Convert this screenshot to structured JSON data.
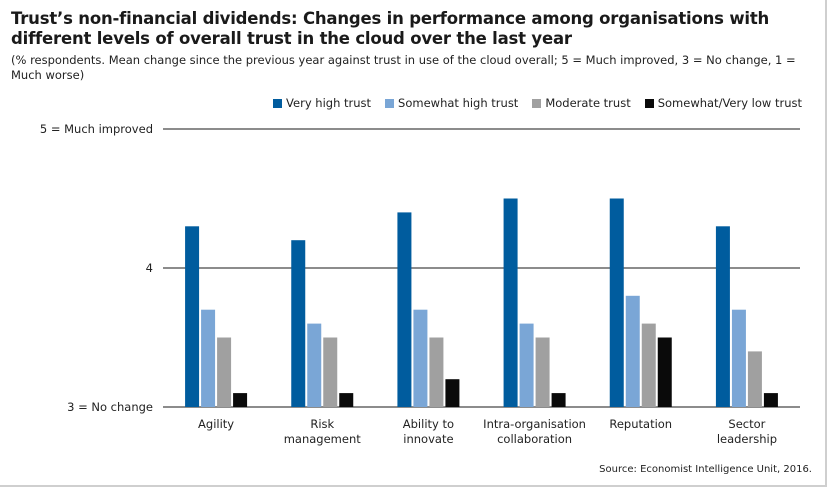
{
  "title": "Trust’s non-financial dividends: Changes in performance among organisations with different levels of overall trust in the cloud over the last year",
  "subtitle": "(% respondents. Mean change since the previous year against trust in use of the cloud overall; 5 = Much improved, 3 = No change, 1 = Much worse)",
  "source": "Source: Economist Intelligence Unit, 2016.",
  "chart_data": {
    "type": "bar",
    "title": "Trust’s non-financial dividends: Changes in performance among organisations with different levels of overall trust in the cloud over the last year",
    "categories": [
      "Agility",
      "Risk management",
      "Ability to innovate",
      "Intra-organisation collaboration",
      "Reputation",
      "Sector leadership"
    ],
    "category_lines": [
      [
        "Agility"
      ],
      [
        "Risk",
        "management"
      ],
      [
        "Ability to",
        "innovate"
      ],
      [
        "Intra-organisation",
        "collaboration"
      ],
      [
        "Reputation"
      ],
      [
        "Sector",
        "leadership"
      ]
    ],
    "series": [
      {
        "name": "Very high trust",
        "color": "#005c9e",
        "values": [
          4.3,
          4.2,
          4.4,
          4.5,
          4.5,
          4.3
        ]
      },
      {
        "name": "Somewhat high trust",
        "color": "#7aa6d6",
        "values": [
          3.7,
          3.6,
          3.7,
          3.6,
          3.8,
          3.7
        ]
      },
      {
        "name": "Moderate trust",
        "color": "#a0a0a0",
        "values": [
          3.5,
          3.5,
          3.5,
          3.5,
          3.6,
          3.4
        ]
      },
      {
        "name": "Somewhat/Very low trust",
        "color": "#0a0a0a",
        "values": [
          3.1,
          3.1,
          3.2,
          3.1,
          3.5,
          3.1
        ]
      }
    ],
    "ylim": [
      3,
      5
    ],
    "yticks": [
      {
        "value": 5,
        "label": "5 = Much improved"
      },
      {
        "value": 4,
        "label": "4"
      },
      {
        "value": 3,
        "label": "3 = No change"
      }
    ],
    "grid": true,
    "legend_position": "top-right"
  }
}
